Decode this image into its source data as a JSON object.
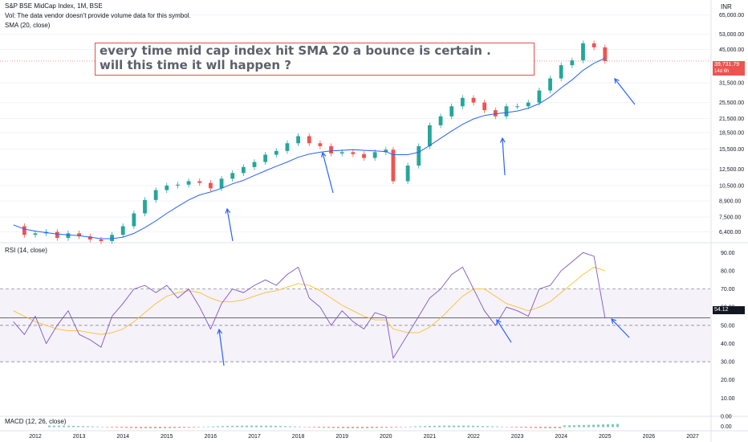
{
  "header": {
    "symbol_line": "S&P BSE MidCap Index, 1M, BSE",
    "vol_line": "Vol: The data vendor doesn't provide volume data for this symbol.",
    "sma_line": "SMA (20, close)"
  },
  "annotation": {
    "line1": "every time  mid cap index hit SMA 20 a bounce is certain .",
    "line2": "will this time it wll happen ?"
  },
  "panes": {
    "rsi_title": "RSI (14, close)",
    "macd_title": "MACD (12, 26, close)"
  },
  "axis": {
    "currency": "INR",
    "last_price": "39,731.79",
    "countdown": "14d 6h",
    "rsi_value": "54.12"
  },
  "colors": {
    "up": "#26a69a",
    "down": "#ef5350",
    "sma": "#2962ff",
    "rsi": "#7e57c2",
    "rsi_ma": "#fbc02d",
    "arrow": "#2962ff",
    "annotation_border": "#e05252"
  },
  "chart_data": [
    {
      "type": "line",
      "name": "price",
      "title": "S&P BSE MidCap Index, 1M, BSE",
      "yscale": "log",
      "x": [
        "2011-07",
        "2011-10",
        "2012-01",
        "2012-04",
        "2012-07",
        "2012-10",
        "2013-01",
        "2013-04",
        "2013-07",
        "2013-10",
        "2014-01",
        "2014-04",
        "2014-07",
        "2014-10",
        "2015-01",
        "2015-04",
        "2015-07",
        "2015-10",
        "2016-01",
        "2016-04",
        "2016-07",
        "2016-10",
        "2017-01",
        "2017-04",
        "2017-07",
        "2017-10",
        "2018-01",
        "2018-04",
        "2018-07",
        "2018-10",
        "2019-01",
        "2019-04",
        "2019-07",
        "2019-10",
        "2020-01",
        "2020-03",
        "2020-07",
        "2020-10",
        "2021-01",
        "2021-04",
        "2021-07",
        "2021-10",
        "2022-01",
        "2022-04",
        "2022-07",
        "2022-10",
        "2023-01",
        "2023-04",
        "2023-07",
        "2023-10",
        "2024-01",
        "2024-04",
        "2024-07",
        "2024-10",
        "2025-01"
      ],
      "series": [
        {
          "values": [
            6800,
            6200,
            6300,
            6400,
            6000,
            6300,
            6100,
            5900,
            5800,
            6200,
            6800,
            7800,
            9000,
            10000,
            10500,
            10600,
            11000,
            10800,
            10200,
            11300,
            12000,
            12800,
            13500,
            14600,
            15200,
            16500,
            17800,
            16500,
            16000,
            14800,
            15000,
            14700,
            14100,
            15000,
            15400,
            11000,
            13000,
            16000,
            20000,
            22000,
            24500,
            26800,
            25500,
            23500,
            22000,
            24500,
            24500,
            25500,
            29000,
            33000,
            38000,
            40000,
            48000,
            46000,
            39731.79
          ]
        },
        {
          "name": "SMA (20, close)",
          "values": [
            6900,
            6600,
            6450,
            6350,
            6250,
            6200,
            6150,
            6050,
            5950,
            5950,
            6050,
            6300,
            6700,
            7200,
            7800,
            8400,
            9000,
            9500,
            9800,
            10200,
            10700,
            11100,
            11700,
            12300,
            12900,
            13500,
            14200,
            14700,
            15000,
            15200,
            15300,
            15400,
            15300,
            15200,
            15100,
            14600,
            14600,
            15000,
            16100,
            17400,
            18800,
            20200,
            21400,
            22200,
            22600,
            22900,
            23300,
            24000,
            25200,
            27100,
            29800,
            32500,
            36000,
            38800,
            41000
          ]
        }
      ],
      "ylim": [
        5800,
        70000
      ],
      "yticks": [
        "65,000.00",
        "53,000.00",
        "45,000.00",
        "31,500.00",
        "25,500.00",
        "21,500.00",
        "18,500.00",
        "15,500.00",
        "12,500.00",
        "10,500.00",
        "8,900.00",
        "7,500.00",
        "6,400.00"
      ]
    },
    {
      "type": "line",
      "name": "rsi",
      "title": "RSI (14, close)",
      "x": [
        "2011-07",
        "2011-10",
        "2012-01",
        "2012-04",
        "2012-07",
        "2012-10",
        "2013-01",
        "2013-04",
        "2013-07",
        "2013-10",
        "2014-01",
        "2014-04",
        "2014-07",
        "2014-10",
        "2015-01",
        "2015-04",
        "2015-07",
        "2015-10",
        "2016-01",
        "2016-04",
        "2016-07",
        "2016-10",
        "2017-01",
        "2017-04",
        "2017-07",
        "2017-10",
        "2018-01",
        "2018-04",
        "2018-07",
        "2018-10",
        "2019-01",
        "2019-04",
        "2019-07",
        "2019-10",
        "2020-01",
        "2020-03",
        "2020-07",
        "2020-10",
        "2021-01",
        "2021-04",
        "2021-07",
        "2021-10",
        "2022-01",
        "2022-04",
        "2022-07",
        "2022-10",
        "2023-01",
        "2023-04",
        "2023-07",
        "2023-10",
        "2024-01",
        "2024-04",
        "2024-07",
        "2024-10",
        "2025-01"
      ],
      "series": [
        {
          "values": [
            52,
            45,
            55,
            40,
            50,
            58,
            45,
            42,
            38,
            55,
            62,
            70,
            72,
            68,
            72,
            65,
            70,
            60,
            48,
            62,
            70,
            68,
            72,
            75,
            72,
            78,
            82,
            65,
            60,
            50,
            58,
            52,
            48,
            57,
            55,
            32,
            45,
            55,
            65,
            70,
            78,
            82,
            70,
            58,
            50,
            60,
            58,
            55,
            70,
            72,
            80,
            85,
            90,
            88,
            54.12
          ]
        },
        {
          "name": "RSI MA",
          "values": [
            58,
            55,
            52,
            50,
            48,
            47,
            47,
            46,
            45,
            46,
            48,
            52,
            57,
            62,
            66,
            68,
            69,
            68,
            65,
            63,
            63,
            64,
            66,
            68,
            69,
            71,
            73,
            72,
            69,
            65,
            61,
            58,
            55,
            53,
            53,
            48,
            46,
            46,
            49,
            54,
            60,
            66,
            70,
            70,
            66,
            62,
            60,
            58,
            60,
            63,
            68,
            73,
            78,
            82,
            80
          ]
        }
      ],
      "ylim": [
        0,
        95
      ],
      "yticks": [
        "90.00",
        "80.00",
        "70.00",
        "60.00",
        "50.00",
        "40.00",
        "30.00",
        "20.00",
        "10.00",
        "0.00"
      ]
    },
    {
      "type": "line",
      "name": "macd",
      "title": "MACD (12, 26, close)",
      "yticks": [
        "0.00"
      ]
    }
  ],
  "xaxis": {
    "years": [
      "2012",
      "2013",
      "2014",
      "2015",
      "2016",
      "2017",
      "2018",
      "2019",
      "2020",
      "2021",
      "2022",
      "2023",
      "2024",
      "2025",
      "2026",
      "2027"
    ]
  }
}
